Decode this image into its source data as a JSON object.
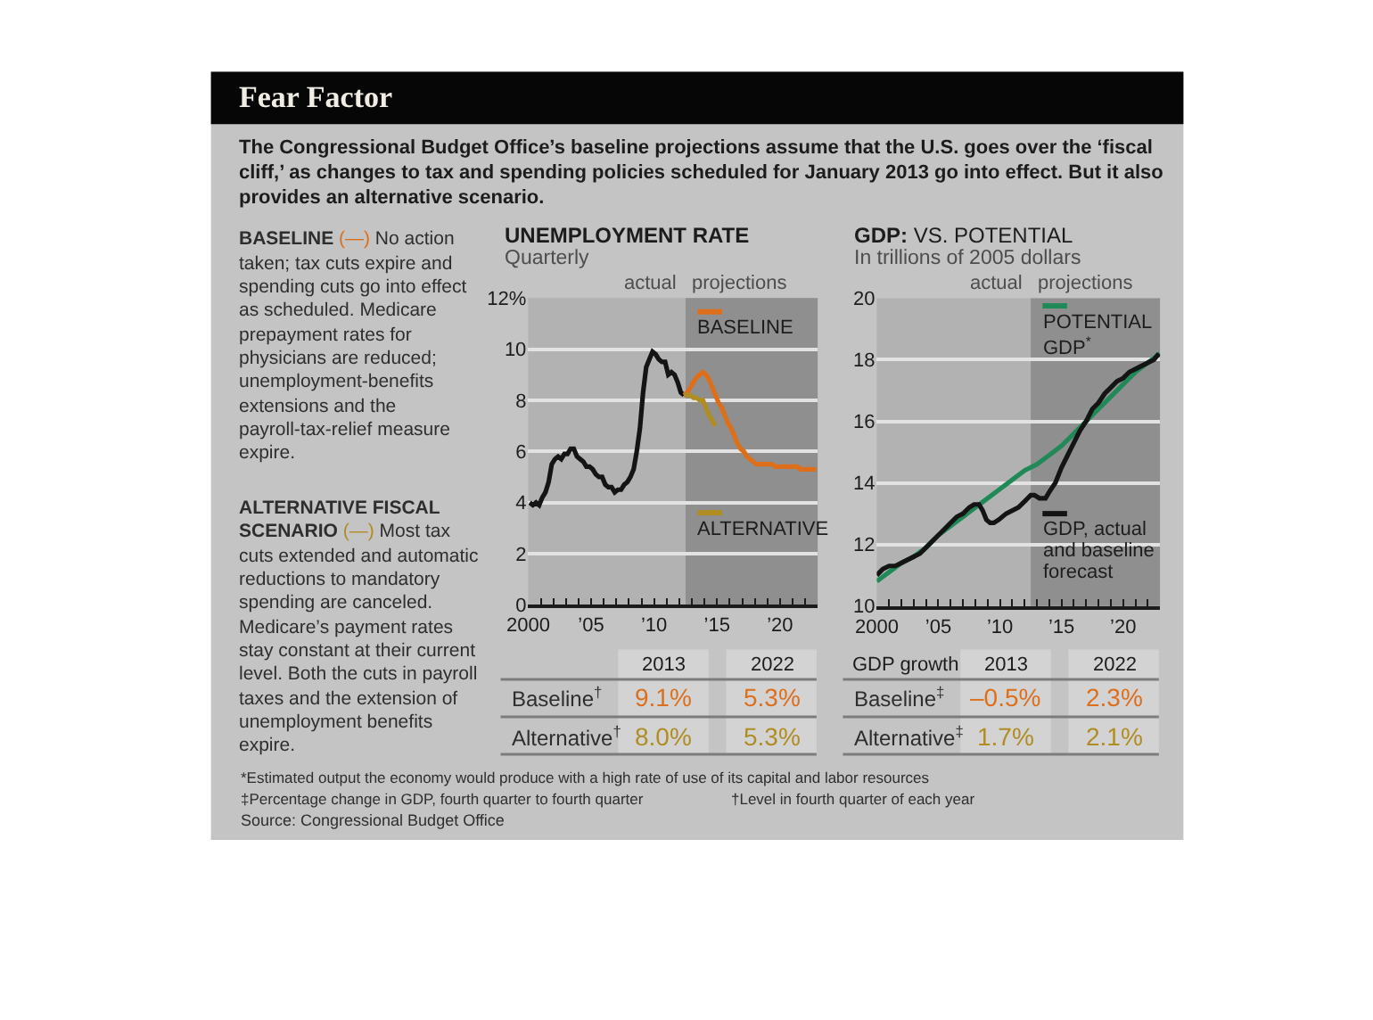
{
  "chart_data": [
    {
      "type": "other",
      "title": "Fear Factor",
      "subtitle": "The Congressional Budget Office’s baseline projections assume that the U.S. goes over the ‘fiscal cliff,’ as changes to tax and spending policies scheduled for January 2013 go into effect. But it also provides an alternative scenario.",
      "annotations": [
        "BASELINE (—) No action taken; tax cuts expire and spending cuts go into effect as scheduled. Medicare prepayment rates for physicians are reduced; unemployment-benefits extensions and the payroll-tax-relief measure expire.",
        "ALTERNATIVE FISCAL SCENARIO (—) Most tax cuts extended and automatic reductions to mandatory spending are canceled. Medicare’s payment rates stay constant at their current level. Both the cuts in payroll taxes and the extension of unemployment benefits expire.",
        "*Estimated output the economy would produce with a high rate of use of its capital and labor resources",
        "†Level in fourth quarter of each year",
        "‡Percentage change in GDP, fourth quarter to fourth quarter",
        "Source: Congressional Budget Office"
      ]
    },
    {
      "type": "line",
      "title": "UNEMPLOYMENT RATE",
      "subtitle": "Quarterly",
      "xlim": [
        2000,
        2023
      ],
      "xticks": [
        2000,
        {
          "value": 2001,
          "label": null
        },
        {
          "value": 2002,
          "label": null
        },
        {
          "value": 2003,
          "label": null
        },
        {
          "value": 2004,
          "label": null
        },
        {
          "value": 2005,
          "label": "’05"
        },
        {
          "value": 2006,
          "label": null
        },
        {
          "value": 2007,
          "label": null
        },
        {
          "value": 2008,
          "label": null
        },
        {
          "value": 2009,
          "label": null
        },
        {
          "value": 2010,
          "label": "’10"
        },
        {
          "value": 2011,
          "label": null
        },
        {
          "value": 2012,
          "label": null
        },
        {
          "value": 2013,
          "label": null
        },
        {
          "value": 2014,
          "label": null
        },
        {
          "value": 2015,
          "label": "’15"
        },
        {
          "value": 2016,
          "label": null
        },
        {
          "value": 2017,
          "label": null
        },
        {
          "value": 2018,
          "label": null
        },
        {
          "value": 2019,
          "label": null
        },
        {
          "value": 2020,
          "label": "’20"
        },
        {
          "value": 2021,
          "label": null
        },
        {
          "value": 2022,
          "label": null
        }
      ],
      "ylim": [
        0,
        12
      ],
      "yticks": [
        0,
        2,
        4,
        6,
        8,
        10,
        {
          "value": 12,
          "label": "12%"
        }
      ],
      "grid": "y",
      "legend": "right",
      "bands": [
        {
          "axis": "x",
          "from": 2012.5,
          "to": 2023,
          "label": "projections",
          "color": "#8f8f8f"
        }
      ],
      "annotations": [
        {
          "text": "actual",
          "x": 2012.5,
          "y": 12
        }
      ],
      "series": [
        {
          "color": "#141414",
          "x": [
            2000.125,
            2000.375,
            2000.625,
            2000.875,
            2001.125,
            2001.375,
            2001.625,
            2001.875,
            2002.125,
            2002.375,
            2002.625,
            2002.875,
            2003.125,
            2003.375,
            2003.625,
            2003.875,
            2004.125,
            2004.375,
            2004.625,
            2004.875,
            2005.125,
            2005.375,
            2005.625,
            2005.875,
            2006.125,
            2006.375,
            2006.625,
            2006.875,
            2007.125,
            2007.375,
            2007.625,
            2007.875,
            2008.125,
            2008.375,
            2008.625,
            2008.875,
            2009.125,
            2009.375,
            2009.625,
            2009.875,
            2010.125,
            2010.375,
            2010.625,
            2010.875,
            2011.125,
            2011.375,
            2011.625,
            2011.875,
            2012.125,
            2012.375
          ],
          "values": [
            4.0,
            3.9,
            4.0,
            3.9,
            4.2,
            4.4,
            4.8,
            5.5,
            5.7,
            5.8,
            5.7,
            5.9,
            5.9,
            6.1,
            6.1,
            5.8,
            5.7,
            5.6,
            5.4,
            5.4,
            5.3,
            5.1,
            5.0,
            5.0,
            4.7,
            4.6,
            4.6,
            4.4,
            4.5,
            4.5,
            4.7,
            4.8,
            5.0,
            5.3,
            6.0,
            6.9,
            8.3,
            9.3,
            9.6,
            9.9,
            9.8,
            9.6,
            9.5,
            9.5,
            9.0,
            9.1,
            9.0,
            8.7,
            8.3,
            8.2
          ]
        },
        {
          "name": "BASELINE",
          "color": "#dd6f1b",
          "x": [
            2012.375,
            2012.625,
            2012.875,
            2013.125,
            2013.375,
            2013.625,
            2013.875,
            2014.125,
            2014.375,
            2014.625,
            2014.875,
            2015.125,
            2015.375,
            2015.625,
            2015.875,
            2016.125,
            2016.375,
            2016.625,
            2016.875,
            2017.125,
            2017.375,
            2017.625,
            2017.875,
            2018.125,
            2019.375,
            2019.625,
            2021.375,
            2021.625,
            2022.875
          ],
          "values": [
            8.2,
            8.3,
            8.5,
            8.7,
            8.9,
            9.0,
            9.1,
            9.0,
            8.8,
            8.5,
            8.2,
            7.9,
            7.7,
            7.4,
            7.1,
            6.9,
            6.6,
            6.3,
            6.1,
            6.0,
            5.8,
            5.7,
            5.6,
            5.5,
            5.5,
            5.4,
            5.4,
            5.3,
            5.3
          ]
        },
        {
          "name": "ALTERNATIVE",
          "color": "#b08d22",
          "x": [
            2012.375,
            2012.625,
            2012.875,
            2013.125,
            2013.375,
            2013.625,
            2013.875,
            2014.125,
            2014.375,
            2014.625,
            2014.875
          ],
          "values": [
            8.2,
            8.2,
            8.2,
            8.1,
            8.1,
            8.0,
            8.0,
            7.7,
            7.4,
            7.2,
            7.0
          ]
        }
      ]
    },
    {
      "type": "line",
      "title": "GDP: VS. POTENTIAL",
      "subtitle": "In trillions of 2005 dollars",
      "xlim": [
        2000,
        2023
      ],
      "xticks": [
        2000,
        {
          "value": 2001,
          "label": null
        },
        {
          "value": 2002,
          "label": null
        },
        {
          "value": 2003,
          "label": null
        },
        {
          "value": 2004,
          "label": null
        },
        {
          "value": 2005,
          "label": "’05"
        },
        {
          "value": 2006,
          "label": null
        },
        {
          "value": 2007,
          "label": null
        },
        {
          "value": 2008,
          "label": null
        },
        {
          "value": 2009,
          "label": null
        },
        {
          "value": 2010,
          "label": "’10"
        },
        {
          "value": 2011,
          "label": null
        },
        {
          "value": 2012,
          "label": null
        },
        {
          "value": 2013,
          "label": null
        },
        {
          "value": 2014,
          "label": null
        },
        {
          "value": 2015,
          "label": "’15"
        },
        {
          "value": 2016,
          "label": null
        },
        {
          "value": 2017,
          "label": null
        },
        {
          "value": 2018,
          "label": null
        },
        {
          "value": 2019,
          "label": null
        },
        {
          "value": 2020,
          "label": "’20"
        },
        {
          "value": 2021,
          "label": null
        },
        {
          "value": 2022,
          "label": null
        }
      ],
      "ylim": [
        10,
        20
      ],
      "yticks": [
        10,
        12,
        14,
        16,
        18,
        20
      ],
      "grid": "y",
      "legend": "right",
      "bands": [
        {
          "axis": "x",
          "from": 2012.5,
          "to": 2023,
          "label": "projections",
          "color": "#8f8f8f"
        }
      ],
      "annotations": [
        {
          "text": "actual",
          "x": 2012.5,
          "y": 20
        }
      ],
      "series": [
        {
          "name": "POTENTIAL GDP$^{*}$",
          "color": "#1f8a57",
          "x": [
            2000,
            2001,
            2002,
            2003,
            2004,
            2005,
            2006,
            2007,
            2008,
            2009,
            2010,
            2011,
            2012,
            2013,
            2014,
            2015,
            2016,
            2017,
            2018,
            2019,
            2020,
            2021,
            2022,
            2023
          ],
          "values": [
            10.8,
            11.1,
            11.4,
            11.6,
            11.9,
            12.3,
            12.6,
            12.9,
            13.2,
            13.5,
            13.8,
            14.1,
            14.4,
            14.6,
            14.9,
            15.2,
            15.6,
            16.0,
            16.4,
            16.8,
            17.2,
            17.6,
            17.9,
            18.2
          ]
        },
        {
          "name": "GDP, actual and baseline forecast",
          "color": "#141414",
          "x": [
            2000.0,
            2000.5,
            2001.0,
            2001.5,
            2002.0,
            2002.5,
            2003.0,
            2003.5,
            2004.0,
            2004.5,
            2005.0,
            2005.5,
            2006.0,
            2006.5,
            2007.0,
            2007.5,
            2007.9,
            2008.3,
            2008.6,
            2008.9,
            2009.2,
            2009.5,
            2009.9,
            2010.5,
            2011.0,
            2011.5,
            2012.0,
            2012.5,
            2012.8,
            2013.2,
            2013.7,
            2014.0,
            2014.5,
            2015.0,
            2015.5,
            2016.0,
            2016.5,
            2017.0,
            2017.5,
            2018.0,
            2018.5,
            2019.0,
            2019.5,
            2020.0,
            2020.5,
            2021.0,
            2021.5,
            2022.0,
            2022.5,
            2022.9
          ],
          "values": [
            11.0,
            11.2,
            11.3,
            11.3,
            11.4,
            11.5,
            11.6,
            11.7,
            11.9,
            12.1,
            12.3,
            12.5,
            12.7,
            12.9,
            13.0,
            13.2,
            13.3,
            13.3,
            13.1,
            12.8,
            12.7,
            12.7,
            12.8,
            13.0,
            13.1,
            13.2,
            13.4,
            13.6,
            13.6,
            13.5,
            13.5,
            13.7,
            14.0,
            14.5,
            14.9,
            15.3,
            15.7,
            16.0,
            16.4,
            16.6,
            16.9,
            17.1,
            17.3,
            17.4,
            17.6,
            17.7,
            17.8,
            17.9,
            18.0,
            18.2
          ]
        }
      ]
    },
    {
      "type": "other",
      "categories": [
        "2013",
        "2022"
      ],
      "series": [
        {
          "name": "Baseline$^{†}$",
          "values": [
            9.1,
            5.3
          ],
          "value_labels": [
            "9.1%",
            "5.3%"
          ]
        },
        {
          "name": "Alternative$^{†}$",
          "values": [
            8.0,
            5.3
          ],
          "value_labels": [
            "8.0%",
            "5.3%"
          ]
        }
      ]
    },
    {
      "type": "other",
      "title": "GDP growth",
      "categories": [
        "2013",
        "2022"
      ],
      "series": [
        {
          "name": "Baseline$^{‡}$",
          "values": [
            -0.5,
            2.3
          ],
          "value_labels": [
            "–0.5%",
            "2.3%"
          ]
        },
        {
          "name": "Alternative$^{‡}$",
          "values": [
            1.7,
            2.1
          ],
          "value_labels": [
            "1.7%",
            "2.1%"
          ]
        }
      ]
    }
  ]
}
